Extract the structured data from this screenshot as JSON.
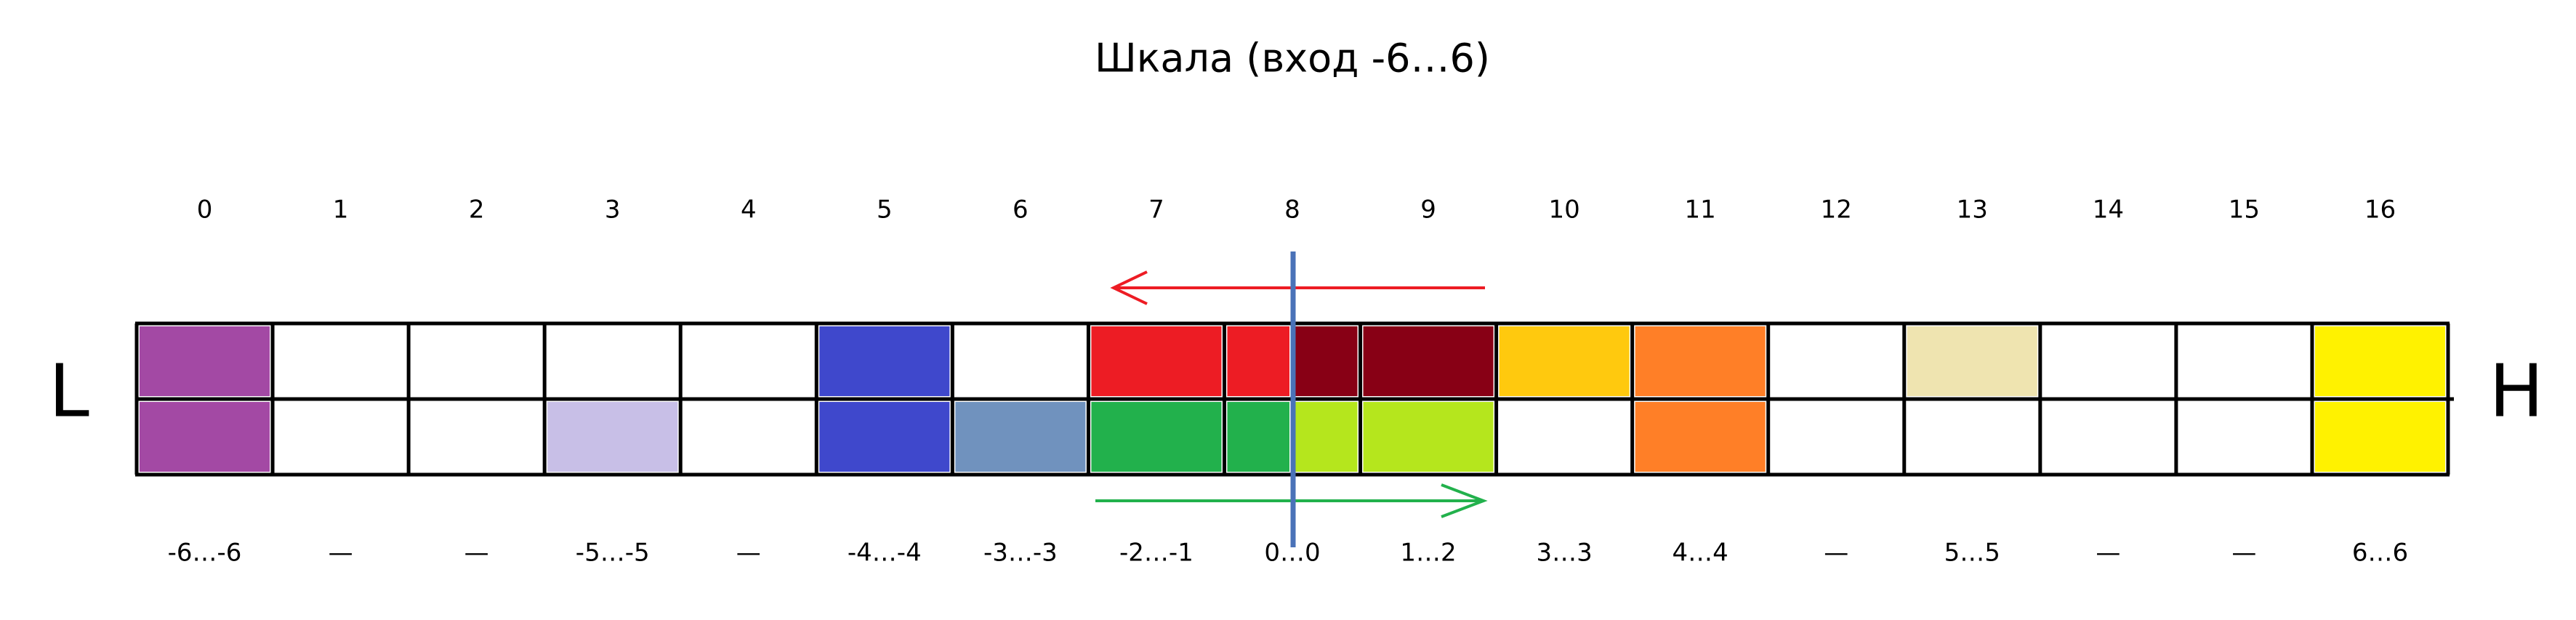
{
  "title": "Шкала (вход -6…6)",
  "left_label": "L",
  "right_label": "H",
  "cells": [
    {
      "index": 0,
      "range": "-6…-6",
      "top": [
        "#a349a4"
      ],
      "bottom": [
        "#a349a4"
      ]
    },
    {
      "index": 1,
      "range": "—",
      "top": [
        "#ffffff"
      ],
      "bottom": [
        "#ffffff"
      ]
    },
    {
      "index": 2,
      "range": "—",
      "top": [
        "#ffffff"
      ],
      "bottom": [
        "#ffffff"
      ]
    },
    {
      "index": 3,
      "range": "-5…-5",
      "top": [
        "#ffffff"
      ],
      "bottom": [
        "#c8bfe7"
      ]
    },
    {
      "index": 4,
      "range": "—",
      "top": [
        "#ffffff"
      ],
      "bottom": [
        "#ffffff"
      ]
    },
    {
      "index": 5,
      "range": "-4…-4",
      "top": [
        "#3f48cc"
      ],
      "bottom": [
        "#3f48cc"
      ]
    },
    {
      "index": 6,
      "range": "-3…-3",
      "top": [
        "#ffffff"
      ],
      "bottom": [
        "#7092be"
      ]
    },
    {
      "index": 7,
      "range": "-2…-1",
      "top": [
        "#ed1c24"
      ],
      "bottom": [
        "#22b14c"
      ]
    },
    {
      "index": 8,
      "range": "0…0",
      "top": [
        "#ed1c24",
        "#880015"
      ],
      "bottom": [
        "#22b14c",
        "#b5e61d"
      ]
    },
    {
      "index": 9,
      "range": "1…2",
      "top": [
        "#880015"
      ],
      "bottom": [
        "#b5e61d"
      ]
    },
    {
      "index": 10,
      "range": "3…3",
      "top": [
        "#ffc90e"
      ],
      "bottom": [
        "#ffffff"
      ]
    },
    {
      "index": 11,
      "range": "4…4",
      "top": [
        "#ff7f27"
      ],
      "bottom": [
        "#ff7f27"
      ]
    },
    {
      "index": 12,
      "range": "—",
      "top": [
        "#ffffff"
      ],
      "bottom": [
        "#ffffff"
      ]
    },
    {
      "index": 13,
      "range": "5…5",
      "top": [
        "#efe4b0"
      ],
      "bottom": [
        "#ffffff"
      ]
    },
    {
      "index": 14,
      "range": "—",
      "top": [
        "#ffffff"
      ],
      "bottom": [
        "#ffffff"
      ]
    },
    {
      "index": 15,
      "range": "—",
      "top": [
        "#ffffff"
      ],
      "bottom": [
        "#ffffff"
      ]
    },
    {
      "index": 16,
      "range": "6…6",
      "top": [
        "#fff200"
      ],
      "bottom": [
        "#fff200"
      ]
    }
  ]
}
